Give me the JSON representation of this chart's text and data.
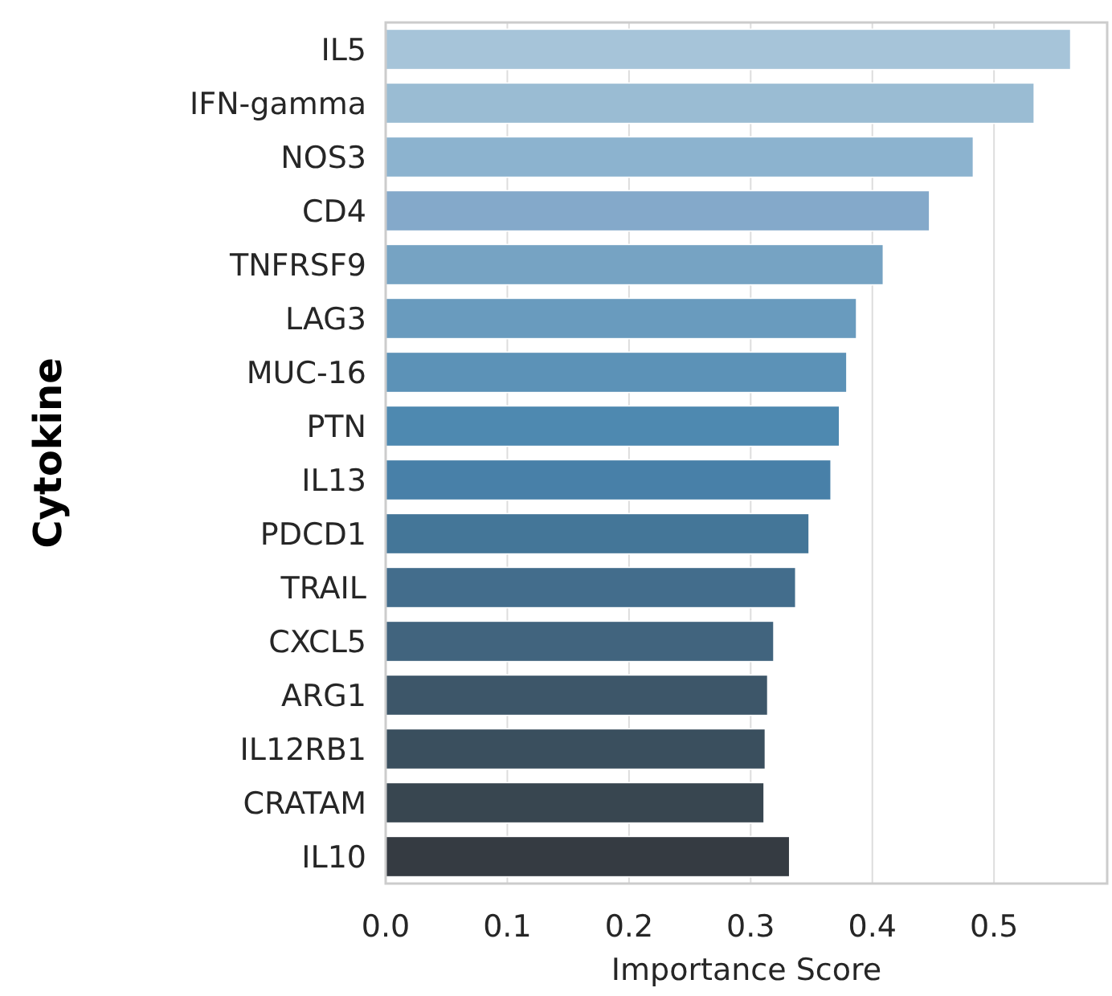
{
  "chart_data": {
    "type": "bar",
    "orientation": "horizontal",
    "xlabel": "Importance Score",
    "ylabel": "Cytokine",
    "categories": [
      "IL5",
      "IFN-gamma",
      "NOS3",
      "CD4",
      "TNFRSF9",
      "LAG3",
      "MUC-16",
      "PTN",
      "IL13",
      "PDCD1",
      "TRAIL",
      "CXCL5",
      "ARG1",
      "IL12RB1",
      "CRATAM",
      "IL10"
    ],
    "values": [
      0.563,
      0.533,
      0.483,
      0.447,
      0.409,
      0.387,
      0.379,
      0.373,
      0.366,
      0.348,
      0.337,
      0.319,
      0.314,
      0.312,
      0.311,
      0.332
    ],
    "colors": [
      "#a6c4d9",
      "#9abcd3",
      "#8cb3cf",
      "#84a9ca",
      "#76a3c3",
      "#699bbe",
      "#5c92b7",
      "#4e89b0",
      "#4880a8",
      "#447698",
      "#436d8c",
      "#41647e",
      "#3d5669",
      "#3a4f5e",
      "#384650",
      "#353b42"
    ],
    "xlim": [
      0,
      0.593
    ],
    "xticks": [
      {
        "value": 0,
        "label": "0.0"
      },
      0.1,
      0.2,
      0.3,
      0.4,
      0.5
    ],
    "grid": "x"
  }
}
